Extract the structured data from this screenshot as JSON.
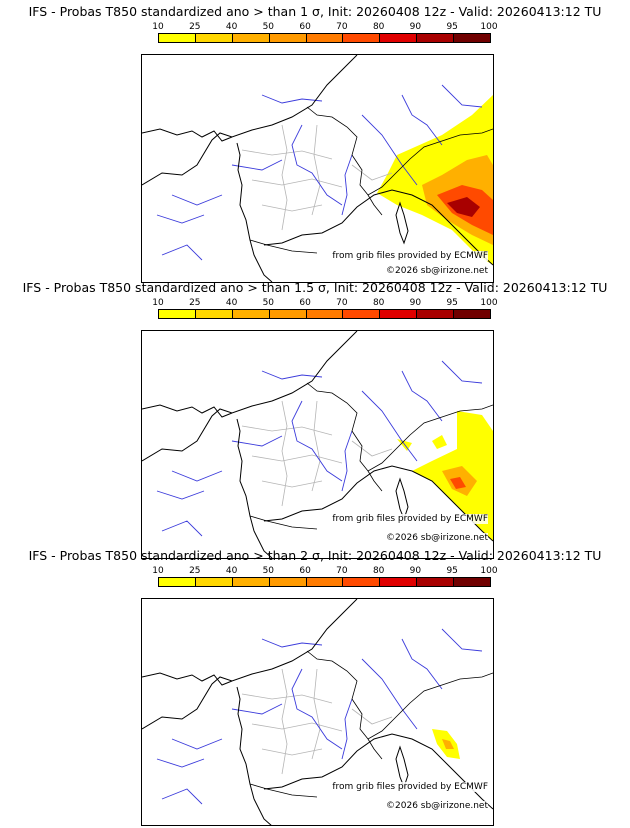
{
  "panels": [
    {
      "title": "IFS - Probas T850  standardized ano > than 1 σ, Init: 20260408 12z - Valid: 20260413:12 TU",
      "level": 1
    },
    {
      "title": "IFS - Probas T850  standardized ano > than 1.5 σ, Init: 20260408 12z - Valid: 20260413:12 TU",
      "level": 2
    },
    {
      "title": "IFS - Probas T850  standardized ano > than 2 σ, Init: 20260408 12z - Valid: 20260413:12 TU",
      "level": 3
    }
  ],
  "legend": {
    "ticks": [
      "10",
      "25",
      "40",
      "50",
      "60",
      "70",
      "80",
      "90",
      "95",
      "100"
    ],
    "colors": [
      "#ffff00",
      "#ffd700",
      "#ffb000",
      "#ff9a00",
      "#ff7b00",
      "#ff4a00",
      "#e00000",
      "#a80000",
      "#700000"
    ]
  },
  "credits": {
    "source": "from grib files provided by ECMWF",
    "copyright": "©2026 sb@irizone.net"
  }
}
